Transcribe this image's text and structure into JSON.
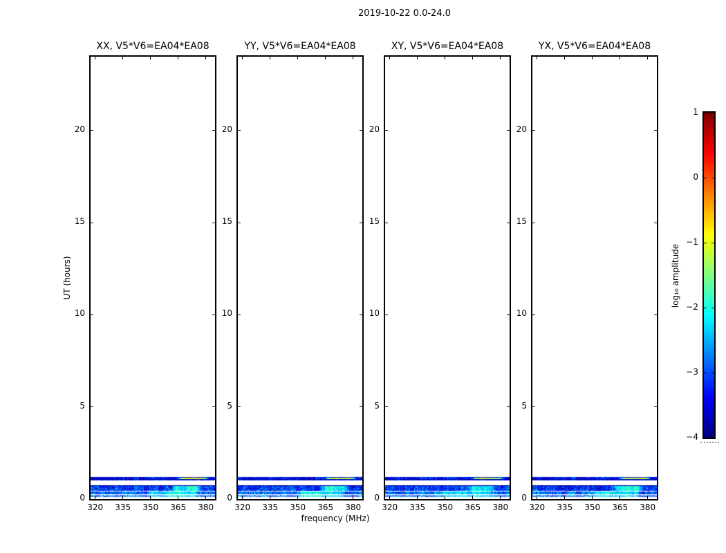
{
  "chart_data": {
    "type": "heatmap",
    "title": "2019-10-22 0.0-24.0",
    "xlabel": "frequency (MHz)",
    "ylabel": "UT (hours)",
    "x_range": [
      317.5,
      385.0
    ],
    "x_ticks": [
      320,
      335,
      350,
      365,
      380
    ],
    "x_tick_labels": [
      "320",
      "335",
      "350",
      "365",
      "380"
    ],
    "y_range": [
      0,
      24
    ],
    "y_ticks": [
      0,
      5,
      10,
      15,
      20
    ],
    "y_tick_labels": [
      "0",
      "5",
      "10",
      "15",
      "20"
    ],
    "grid": false,
    "panels": [
      {
        "id": "XX",
        "title": "XX, V5*V6=EA04*EA08"
      },
      {
        "id": "YY",
        "title": "YY, V5*V6=EA04*EA08"
      },
      {
        "id": "XY",
        "title": "XY, V5*V6=EA04*EA08"
      },
      {
        "id": "YX",
        "title": "YX, V5*V6=EA04*EA08"
      }
    ],
    "colorbar": {
      "label": "log₁₀ amplitude",
      "ticks": [
        1,
        0,
        -1,
        -2,
        -3,
        -4
      ],
      "tick_labels": [
        "1",
        "0",
        "−1",
        "−2",
        "−3",
        "−4"
      ],
      "range": [
        -4,
        1
      ],
      "colormap": "jet",
      "color_low": "#000080",
      "color_high": "#7f0000"
    },
    "bands": [
      {
        "ut": [
          1.025,
          1.2
        ],
        "base_amp": -3.35,
        "noise": 0.45,
        "dark_rows": [
          3
        ],
        "hot": {
          "freq": [
            364,
            382
          ],
          "amp": -1.15,
          "noise": 0.35,
          "rows": [
            1,
            2
          ]
        }
      },
      {
        "ut": [
          0.45,
          0.75
        ],
        "base_amp": -3.05,
        "noise": 0.5,
        "dark_rows": [
          0
        ],
        "hot": {
          "freq": [
            361,
            378
          ],
          "amp": -2.15,
          "noise": 0.4,
          "rows": "all"
        }
      },
      {
        "ut": [
          0.13,
          0.41
        ],
        "base_amp": -2.75,
        "noise": 0.5,
        "white_rows": [
          4,
          6
        ],
        "hot": {
          "freq": [
            348,
            376
          ],
          "amp": -2.25,
          "noise": 0.4,
          "rows": "all"
        }
      }
    ]
  }
}
